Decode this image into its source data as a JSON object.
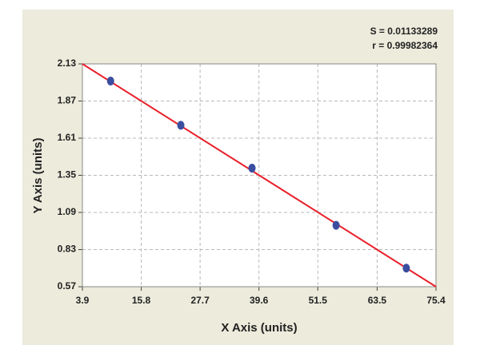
{
  "chart_data": {
    "type": "scatter",
    "x_label": "X Axis (units)",
    "y_label": "Y Axis (units)",
    "annotations": [
      "S = 0.01133289",
      "r = 0.99982364"
    ],
    "series": [
      {
        "color": "#3b4ea0",
        "x": [
          9.6,
          23.8,
          38.2,
          55.2,
          69.4
        ],
        "values": [
          2.01,
          1.7,
          1.4,
          1.0,
          0.7
        ]
      },
      {
        "type": "line",
        "color": "#e8202a",
        "x": [
          3.9,
          75.4
        ],
        "values": [
          2.13,
          0.57
        ]
      }
    ],
    "xlim": [
      3.9,
      75.4
    ],
    "ylim": [
      0.57,
      2.13
    ],
    "xticks": [
      3.9,
      15.8,
      27.7,
      39.6,
      51.5,
      63.5,
      75.4
    ],
    "yticks": [
      0.57,
      0.83,
      1.09,
      1.35,
      1.61,
      1.87,
      2.13
    ],
    "grid": true
  }
}
